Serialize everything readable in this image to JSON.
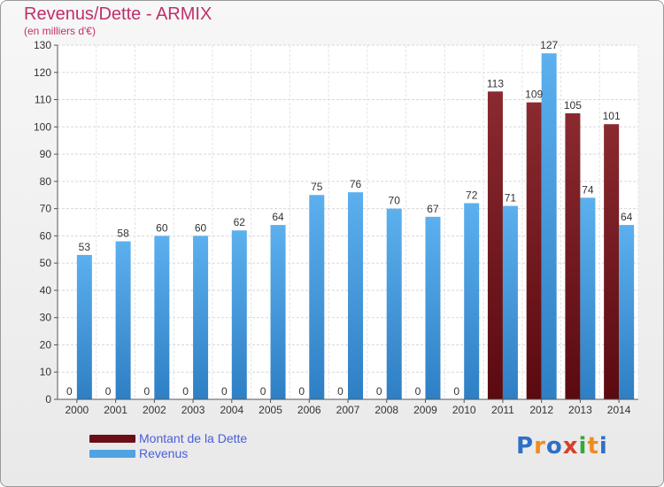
{
  "title": "Revenus/Dette - ARMIX",
  "subtitle": "(en milliers d'€)",
  "colors": {
    "dette": "#7a1b22",
    "revenus": "#4fa3e3",
    "title": "#c0306a",
    "legend_text": "#4a5fd8"
  },
  "legend": [
    {
      "label": "Montant de la Dette",
      "color": "#6b0f16"
    },
    {
      "label": "Revenus",
      "color": "#4fa3e3"
    }
  ],
  "logo": {
    "letters": [
      "P",
      "r",
      "o",
      "x",
      "i",
      "t",
      "i"
    ],
    "colors": [
      "#2f6fc8",
      "#f08c1e",
      "#2f6fc8",
      "#d8402a",
      "#38a838",
      "#f08c1e",
      "#2f6fc8"
    ]
  },
  "chart_data": {
    "type": "bar",
    "categories": [
      "2000",
      "2001",
      "2002",
      "2003",
      "2004",
      "2005",
      "2006",
      "2007",
      "2008",
      "2009",
      "2010",
      "2011",
      "2012",
      "2013",
      "2014"
    ],
    "series": [
      {
        "name": "Montant de la Dette",
        "values": [
          0,
          0,
          0,
          0,
          0,
          0,
          0,
          0,
          0,
          0,
          0,
          113,
          109,
          105,
          101
        ]
      },
      {
        "name": "Revenus",
        "values": [
          53,
          58,
          60,
          60,
          62,
          64,
          75,
          76,
          70,
          67,
          72,
          71,
          127,
          74,
          64
        ]
      }
    ],
    "yticks": [
      0,
      10,
      20,
      30,
      40,
      50,
      60,
      70,
      80,
      90,
      100,
      110,
      120,
      130
    ],
    "ylim": [
      0,
      130
    ],
    "grid": true,
    "legend_position": "bottom-left"
  }
}
